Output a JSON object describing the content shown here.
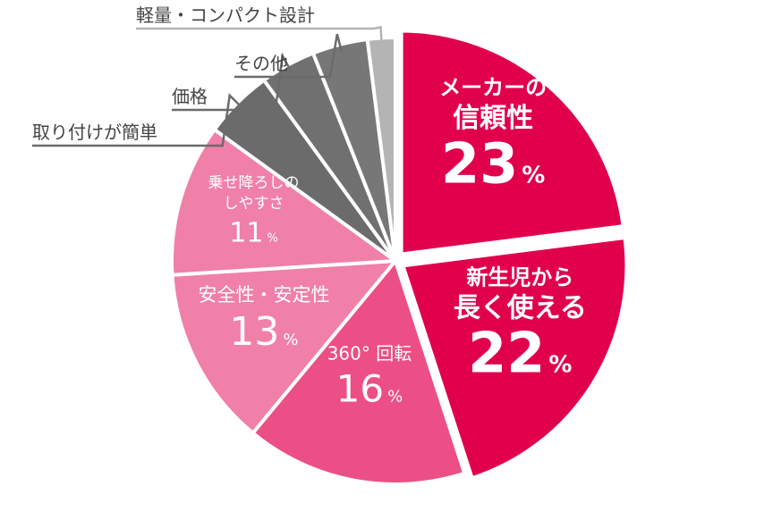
{
  "chart_data": {
    "type": "pie",
    "slices": [
      {
        "lines": [
          "メーカーの",
          "信頼性"
        ],
        "value": 23,
        "unit": "%",
        "color": "#e0004c",
        "exploded": true
      },
      {
        "lines": [
          "新生児から",
          "長く使える"
        ],
        "value": 22,
        "unit": "%",
        "color": "#e0004c",
        "exploded": true
      },
      {
        "lines": [
          "360°  回転"
        ],
        "value": 16,
        "unit": "%",
        "color": "#ec4f85",
        "exploded": false
      },
      {
        "lines": [
          "安全性・安定性"
        ],
        "value": 13,
        "unit": "%",
        "color": "#f080a8",
        "exploded": false
      },
      {
        "lines": [
          "乗せ降ろしの",
          "しやすさ"
        ],
        "value": 11,
        "unit": "%",
        "color": "#f080a8",
        "exploded": false
      },
      {
        "lines": [
          "取り付けが簡単"
        ],
        "value": 5,
        "color": "#6b6b6b",
        "exploded": false
      },
      {
        "lines": [
          "価格"
        ],
        "value": 4,
        "color": "#707070",
        "exploded": false
      },
      {
        "lines": [
          "その他"
        ],
        "value": 4,
        "color": "#777777",
        "exploded": false
      },
      {
        "lines": [
          "軽量・コンパクト設計"
        ],
        "value": 2,
        "color": "#b4b4b4",
        "exploded": false
      }
    ]
  }
}
